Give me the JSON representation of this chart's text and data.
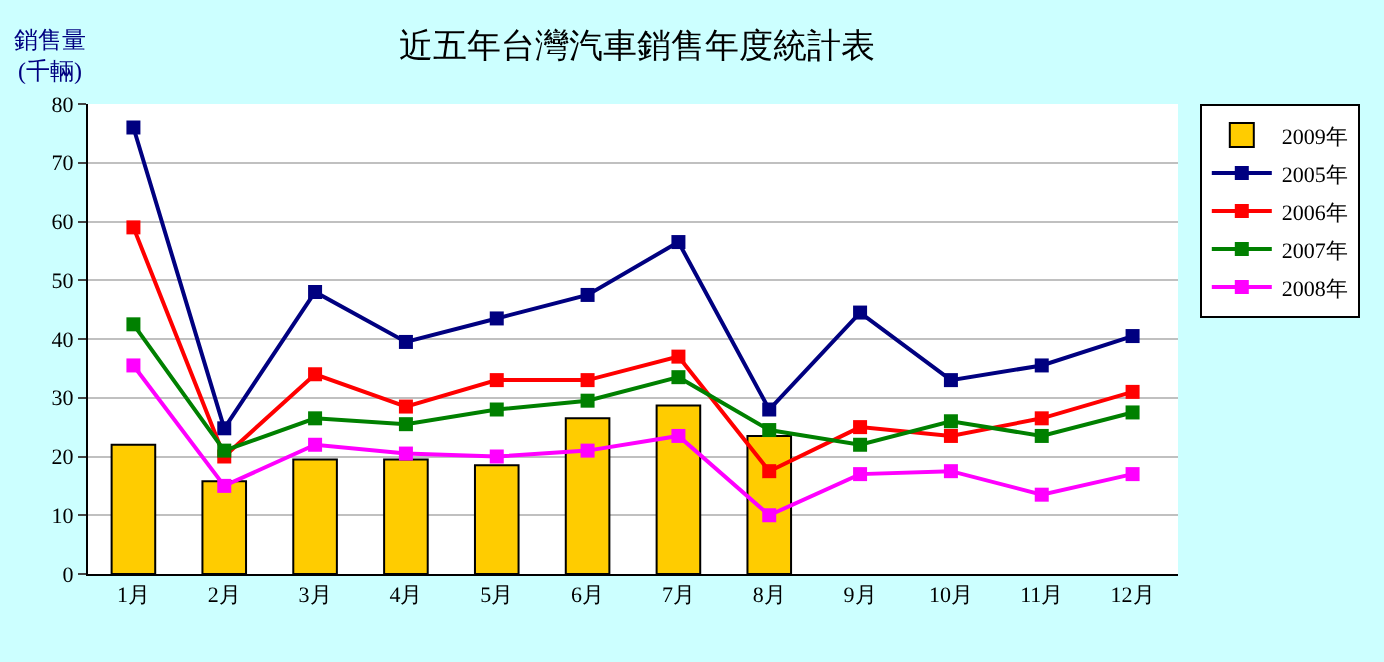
{
  "chart_data": {
    "type": "line",
    "title": "近五年台灣汽車銷售年度統計表",
    "ylabel": "銷售量\n(千輛)",
    "categories": [
      "1月",
      "2月",
      "3月",
      "4月",
      "5月",
      "6月",
      "7月",
      "8月",
      "9月",
      "10月",
      "11月",
      "12月"
    ],
    "series": [
      {
        "name": "2009年",
        "type": "bar",
        "color": "#ffcc00",
        "values": [
          22,
          15.8,
          19.5,
          19.5,
          18.5,
          26.5,
          28.7,
          23.5,
          null,
          null,
          null,
          null
        ]
      },
      {
        "name": "2005年",
        "color": "#000080",
        "values": [
          76,
          24.8,
          48,
          39.5,
          43.5,
          47.5,
          56.5,
          28,
          44.5,
          33,
          35.5,
          40.5
        ]
      },
      {
        "name": "2006年",
        "color": "#ff0000",
        "values": [
          59,
          20,
          34,
          28.5,
          33,
          33,
          37,
          17.5,
          25,
          23.5,
          26.5,
          31
        ]
      },
      {
        "name": "2007年",
        "color": "#008000",
        "values": [
          42.5,
          21,
          26.5,
          25.5,
          28,
          29.5,
          33.5,
          24.5,
          22,
          26,
          23.5,
          27.5
        ]
      },
      {
        "name": "2008年",
        "color": "#ff00ff",
        "values": [
          35.5,
          15,
          22,
          20.5,
          20,
          21,
          23.5,
          10,
          17,
          17.5,
          13.5,
          17
        ]
      }
    ],
    "ylim": [
      0,
      80
    ],
    "yticks": [
      0,
      10,
      20,
      30,
      40,
      50,
      60,
      70,
      80
    ],
    "grid": "y",
    "legend": "top right",
    "marker": "square",
    "line_style": "solid"
  }
}
